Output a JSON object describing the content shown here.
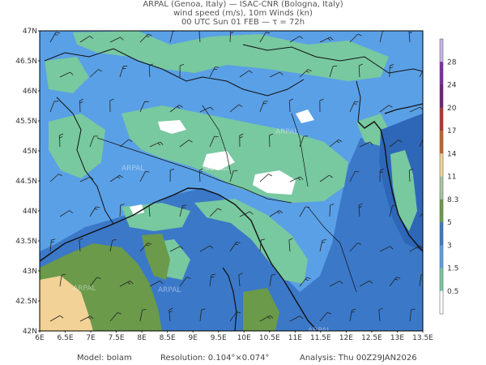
{
  "header": {
    "line1": "ARPAL (Genoa, Italy)  —  ISAC-CNR (Bologna, Italy)",
    "line2": "wind speed (m/s), 10m Winds (kn)",
    "line3": "00 UTC Sun 01 FEB  —  τ = 72h"
  },
  "axes": {
    "lat_labels": [
      "47N",
      "46.5N",
      "46N",
      "45.5N",
      "45N",
      "44.5N",
      "44N",
      "43.5N",
      "43N",
      "42.5N",
      "42N"
    ],
    "lon_labels": [
      "6E",
      "6.5E",
      "7E",
      "7.5E",
      "8E",
      "8.5E",
      "9E",
      "9.5E",
      "10E",
      "10.5E",
      "11E",
      "11.5E",
      "12E",
      "12.5E",
      "13E",
      "13.5E"
    ]
  },
  "colorbar": {
    "labels": [
      "28",
      "24",
      "20",
      "17",
      "14",
      "11",
      "8.3",
      "5",
      "3",
      "1.5",
      "0.5"
    ],
    "colors": [
      "#c8b4e6",
      "#7a2aa8",
      "#6e1e78",
      "#b83232",
      "#c86428",
      "#f2d296",
      "#a8c8a0",
      "#6a9a4a",
      "#3b78c8",
      "#5aa0e6",
      "#78c8a0",
      "#ffffff"
    ]
  },
  "watermark": "ARPAL",
  "footer": {
    "model": "Model: bolam",
    "resolution": "Resolution: 0.104°×0.074°",
    "analysis": "Analysis: Thu 00Z29JAN2026"
  },
  "colors": {
    "sea_blue": "#3b78c8",
    "light_blue": "#5aa0e6",
    "teal_green": "#78c8a0",
    "olive_green": "#6a9a4a",
    "sand": "#f2d296",
    "white_calm": "#ffffff"
  }
}
